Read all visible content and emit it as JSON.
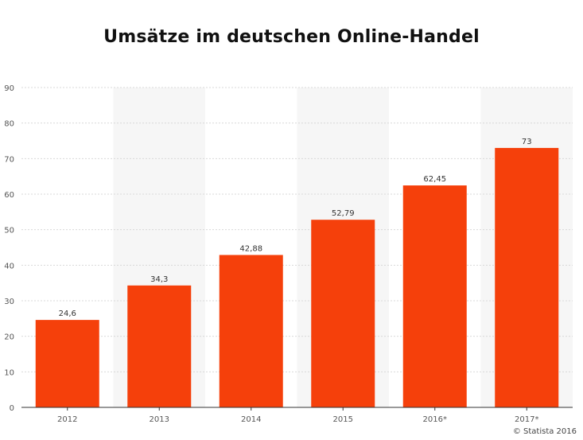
{
  "chart_data": {
    "type": "bar",
    "title": "Umsätze im deutschen Online-Handel",
    "categories": [
      "2012",
      "2013",
      "2014",
      "2015",
      "2016*",
      "2017*"
    ],
    "values": [
      24.6,
      34.3,
      42.88,
      52.79,
      62.45,
      73
    ],
    "value_labels": [
      "24,6",
      "34,3",
      "42,88",
      "52,79",
      "62,45",
      "73"
    ],
    "xlabel": "",
    "ylabel": "",
    "ylim": [
      0,
      90
    ],
    "yticks": [
      0,
      10,
      20,
      30,
      40,
      50,
      60,
      70,
      80,
      90
    ],
    "grid": true,
    "legend": "none",
    "bar_color": "#f5400b",
    "alt_band_color": "#f6f6f6"
  },
  "footer": {
    "source": "© Statista 2016"
  }
}
